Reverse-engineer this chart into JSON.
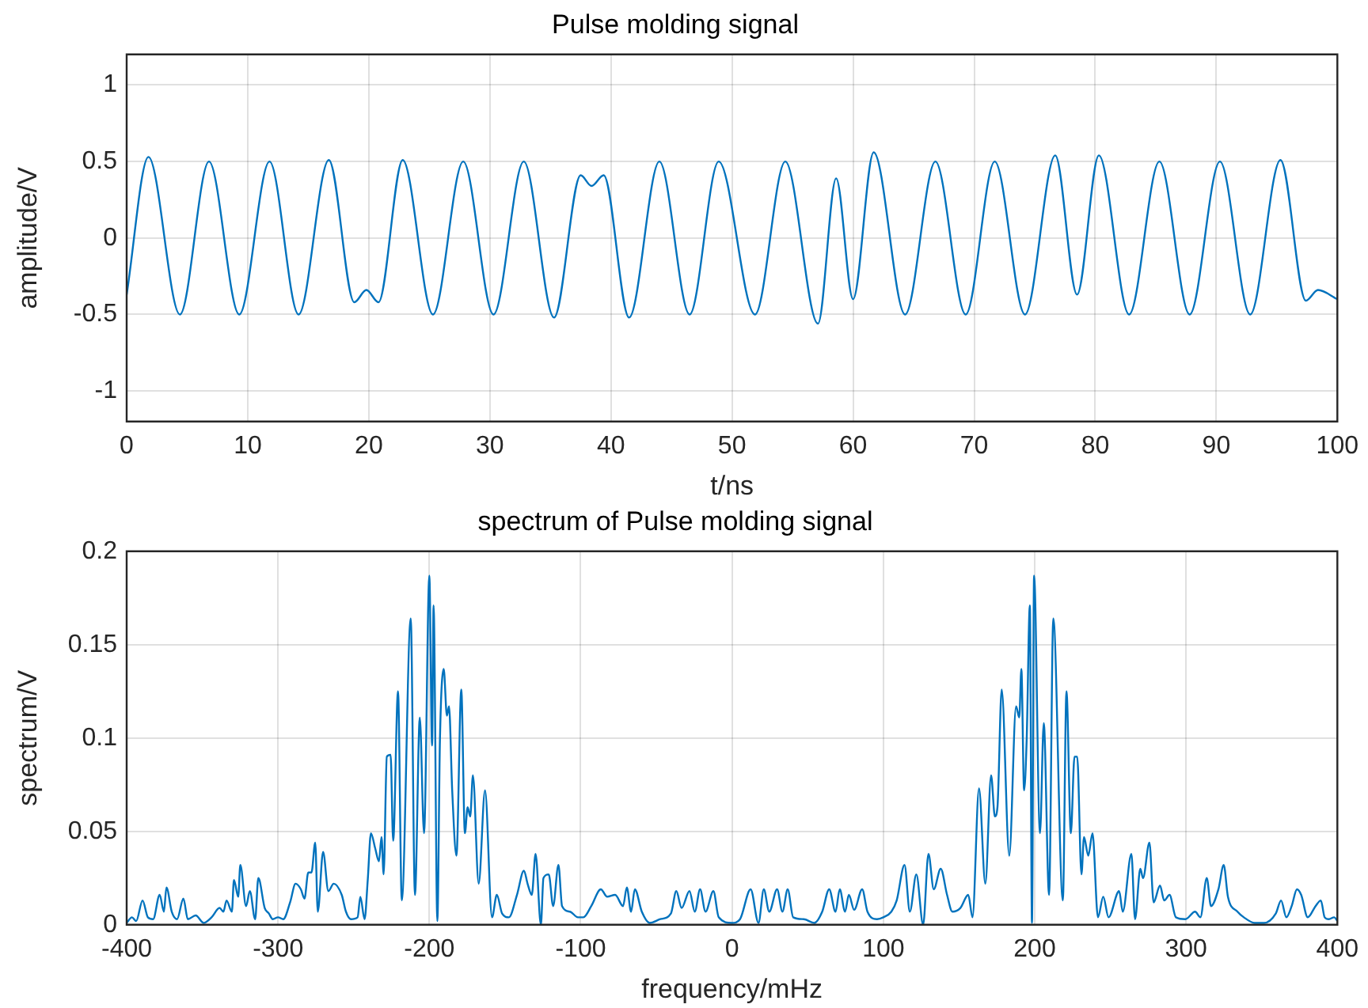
{
  "chart_data": [
    {
      "type": "line",
      "title": "Pulse molding signal",
      "xlabel": "t/ns",
      "ylabel": "amplitude/V",
      "xlim": [
        0,
        100
      ],
      "xticks": [
        0,
        10,
        20,
        30,
        40,
        50,
        60,
        70,
        80,
        90,
        100
      ],
      "ylim": [
        -1.2,
        1.2
      ],
      "yticks": [
        -1,
        -0.5,
        0,
        0.5,
        1
      ],
      "grid": true,
      "legend": false,
      "series": [
        {
          "color": "#0072bd",
          "x": [
            0,
            1.8,
            4.4,
            6.8,
            9.3,
            11.8,
            14.2,
            16.7,
            18.8,
            19.8,
            20.8,
            22.8,
            25.3,
            27.8,
            30.3,
            32.8,
            35.3,
            37.5,
            38.4,
            39.4,
            41.5,
            44.0,
            46.5,
            48.9,
            51.9,
            54.4,
            57.1,
            58.6,
            60.0,
            61.7,
            64.3,
            66.8,
            69.3,
            71.7,
            74.2,
            76.7,
            78.5,
            80.3,
            82.8,
            85.3,
            87.8,
            90.3,
            92.8,
            95.3,
            97.4,
            98.4,
            100
          ],
          "values": [
            -0.37,
            0.53,
            -0.5,
            0.5,
            -0.5,
            0.5,
            -0.5,
            0.51,
            -0.42,
            -0.34,
            -0.42,
            0.51,
            -0.5,
            0.5,
            -0.5,
            0.5,
            -0.52,
            0.41,
            0.34,
            0.41,
            -0.52,
            0.5,
            -0.5,
            0.5,
            -0.5,
            0.5,
            -0.56,
            0.39,
            -0.4,
            0.56,
            -0.5,
            0.5,
            -0.5,
            0.5,
            -0.5,
            0.54,
            -0.37,
            0.54,
            -0.5,
            0.5,
            -0.5,
            0.5,
            -0.5,
            0.51,
            -0.41,
            -0.34,
            -0.4
          ]
        }
      ]
    },
    {
      "type": "line",
      "title": "spectrum of Pulse molding signal",
      "xlabel": "frequency/mHz",
      "ylabel": "spectrum/V",
      "xlim": [
        -400,
        400
      ],
      "xticks": [
        -400,
        -300,
        -200,
        -100,
        0,
        100,
        200,
        300,
        400
      ],
      "ylim": [
        0,
        0.2
      ],
      "yticks": [
        0,
        0.05,
        0.1,
        0.15,
        0.2
      ],
      "grid": true,
      "legend": false,
      "series": [
        {
          "color": "#0072bd",
          "x": [
            -400,
            -396.5,
            -393.7,
            -389.5,
            -386,
            -382.5,
            -378.2,
            -375.4,
            -373.7,
            -370.2,
            -366.7,
            -362.5,
            -359.6,
            -354.4,
            -349.1,
            -343.9,
            -338.6,
            -336.1,
            -334,
            -330.5,
            -329.1,
            -326.3,
            -324.9,
            -321.1,
            -318.6,
            -315.1,
            -313,
            -308.8,
            -306,
            -303.5,
            -300,
            -296.5,
            -292,
            -288.4,
            -284.9,
            -282.5,
            -280,
            -277.9,
            -275.4,
            -273.7,
            -270.2,
            -266.7,
            -263.2,
            -257.9,
            -255.1,
            -251.9,
            -247.4,
            -245.6,
            -242.8,
            -240.7,
            -238.6,
            -235.8,
            -233.3,
            -231.6,
            -230.2,
            -228.1,
            -225.6,
            -223.9,
            -220.7,
            -218.2,
            -212.3,
            -209.5,
            -206.3,
            -203.5,
            -200,
            -198.2,
            -197.2,
            -194.7,
            -193,
            -190.5,
            -188.4,
            -187,
            -184.9,
            -182.1,
            -178.9,
            -176.5,
            -174.7,
            -173,
            -171.2,
            -167.4,
            -163.2,
            -158.6,
            -155.4,
            -151.9,
            -147.4,
            -142.1,
            -137.5,
            -135.1,
            -132.3,
            -129.8,
            -126.3,
            -124.6,
            -121.1,
            -118.2,
            -114.7,
            -112.3,
            -107,
            -101.8,
            -98.2,
            -93,
            -86.7,
            -82.5,
            -77.2,
            -72,
            -69.5,
            -66.7,
            -64.2,
            -59.6,
            -54.4,
            -47.4,
            -40.4,
            -36.8,
            -33.3,
            -28.1,
            -24.6,
            -21.1,
            -17.5,
            -12.3,
            -8.8,
            0,
            5.3,
            12.3,
            17.5,
            21,
            24.6,
            29.8,
            33.3,
            36.8,
            40.4,
            47.4,
            54.4,
            59.6,
            64.2,
            68.4,
            71.2,
            74.7,
            77.2,
            80.7,
            86,
            89.5,
            95.8,
            100,
            105.3,
            108.8,
            114,
            117.5,
            121.8,
            126.3,
            129.8,
            133.3,
            137.9,
            142.1,
            145.6,
            150.9,
            156.1,
            158.9,
            163.2,
            167.4,
            171.2,
            173.7,
            175.4,
            178.2,
            183.2,
            187.7,
            189.8,
            191.2,
            193,
            194.7,
            196.8,
            198.2,
            199.6,
            203.5,
            206,
            209.5,
            212.3,
            218.6,
            221,
            223.9,
            226.3,
            228.1,
            230.9,
            232.6,
            235.4,
            238.2,
            241.8,
            245.3,
            248.8,
            255.8,
            258.2,
            263.9,
            266.3,
            269.8,
            271.6,
            275.8,
            278.6,
            282.8,
            285.6,
            289.1,
            293.3,
            299.6,
            306,
            309.5,
            313.7,
            316.5,
            321.4,
            324.9,
            327.7,
            334,
            338.2,
            345.3,
            351.6,
            359.3,
            362.8,
            366.3,
            369.8,
            373.3,
            376.1,
            380.4,
            385.6,
            389.1,
            391.6,
            394.4,
            397.9,
            400
          ],
          "values": [
            0.001,
            0.004,
            0.002,
            0.013,
            0.004,
            0.003,
            0.016,
            0.007,
            0.02,
            0.007,
            0.003,
            0.014,
            0.003,
            0.005,
            0.001,
            0.004,
            0.009,
            0.007,
            0.013,
            0.007,
            0.024,
            0.015,
            0.032,
            0.01,
            0.018,
            0.003,
            0.025,
            0.009,
            0.006,
            0.003,
            0.004,
            0.003,
            0.012,
            0.022,
            0.019,
            0.014,
            0.028,
            0.028,
            0.044,
            0.007,
            0.039,
            0.018,
            0.022,
            0.016,
            0.007,
            0.003,
            0.004,
            0.015,
            0.003,
            0.024,
            0.049,
            0.041,
            0.034,
            0.047,
            0.027,
            0.09,
            0.091,
            0.045,
            0.125,
            0.013,
            0.164,
            0.016,
            0.111,
            0.049,
            0.187,
            0.096,
            0.171,
            0.002,
            0.099,
            0.137,
            0.112,
            0.117,
            0.072,
            0.037,
            0.126,
            0.049,
            0.063,
            0.058,
            0.08,
            0.022,
            0.072,
            0.004,
            0.016,
            0.006,
            0.004,
            0.016,
            0.029,
            0.022,
            0.016,
            0.038,
            0,
            0.025,
            0.027,
            0.01,
            0.032,
            0.01,
            0.007,
            0.004,
            0.004,
            0.01,
            0.019,
            0.015,
            0.016,
            0.01,
            0.02,
            0.007,
            0.019,
            0.007,
            0.001,
            0.003,
            0.006,
            0.018,
            0.009,
            0.018,
            0.007,
            0.019,
            0.007,
            0.018,
            0.004,
            0.001,
            0.003,
            0.019,
            0.001,
            0.019,
            0.007,
            0.019,
            0.007,
            0.019,
            0.004,
            0.003,
            0.001,
            0.007,
            0.019,
            0.007,
            0.019,
            0.007,
            0.016,
            0.008,
            0.019,
            0.007,
            0.003,
            0.004,
            0.007,
            0.013,
            0.032,
            0.007,
            0.027,
            0,
            0.038,
            0.019,
            0.03,
            0.016,
            0.007,
            0.009,
            0.016,
            0.004,
            0.073,
            0.022,
            0.08,
            0.058,
            0.063,
            0.126,
            0.037,
            0.117,
            0.111,
            0.137,
            0.072,
            0.099,
            0.171,
            0.001,
            0.187,
            0.049,
            0.108,
            0.016,
            0.164,
            0.013,
            0.125,
            0.049,
            0.09,
            0.09,
            0.027,
            0.047,
            0.037,
            0.049,
            0.004,
            0.015,
            0.004,
            0.018,
            0.007,
            0.038,
            0.003,
            0.03,
            0.025,
            0.044,
            0.012,
            0.021,
            0.013,
            0.016,
            0.004,
            0.003,
            0.007,
            0.004,
            0.025,
            0.01,
            0.019,
            0.032,
            0.015,
            0.007,
            0.004,
            0.001,
            0.001,
            0.006,
            0.013,
            0.004,
            0.01,
            0.019,
            0.016,
            0.004,
            0.01,
            0.013,
            0.004,
            0.003,
            0.004,
            0.002
          ]
        }
      ]
    }
  ]
}
